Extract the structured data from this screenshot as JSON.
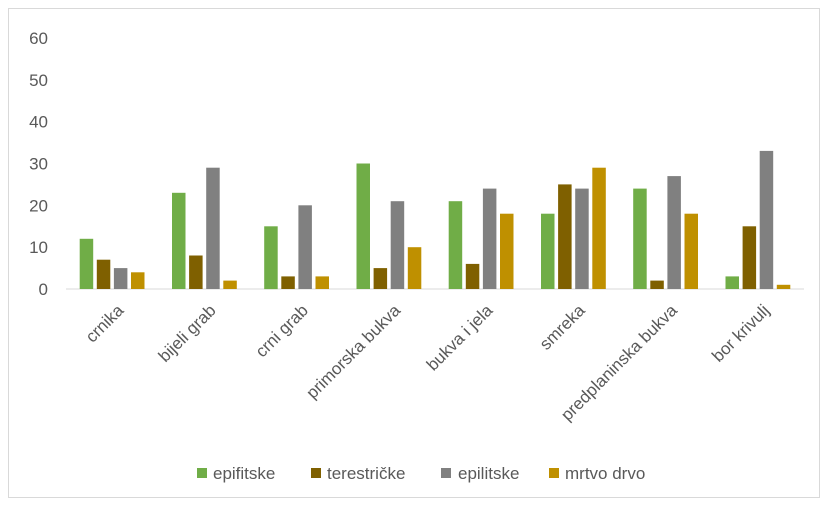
{
  "chart_data": {
    "type": "bar",
    "title": "",
    "xlabel": "",
    "ylabel": "",
    "ylim": [
      0,
      60
    ],
    "yticks": [
      0,
      10,
      20,
      30,
      40,
      50,
      60
    ],
    "grid": false,
    "legend_position": "bottom",
    "categories": [
      "crnika",
      "bijeli grab",
      "crni grab",
      "primorska bukva",
      "bukva i jela",
      "smreka",
      "predplaninska bukva",
      "bor krivulj"
    ],
    "series": [
      {
        "name": "epifitske",
        "color": "#70ad47",
        "values": [
          12,
          23,
          15,
          30,
          21,
          18,
          24,
          3
        ]
      },
      {
        "name": "terestričke",
        "color": "#7f6000",
        "values": [
          7,
          8,
          3,
          5,
          6,
          25,
          2,
          15
        ]
      },
      {
        "name": "epilitske",
        "color": "#808080",
        "values": [
          5,
          29,
          20,
          21,
          24,
          24,
          27,
          33
        ]
      },
      {
        "name": "mrtvo drvo",
        "color": "#bf9000",
        "values": [
          4,
          2,
          3,
          10,
          18,
          29,
          18,
          1
        ]
      }
    ]
  }
}
